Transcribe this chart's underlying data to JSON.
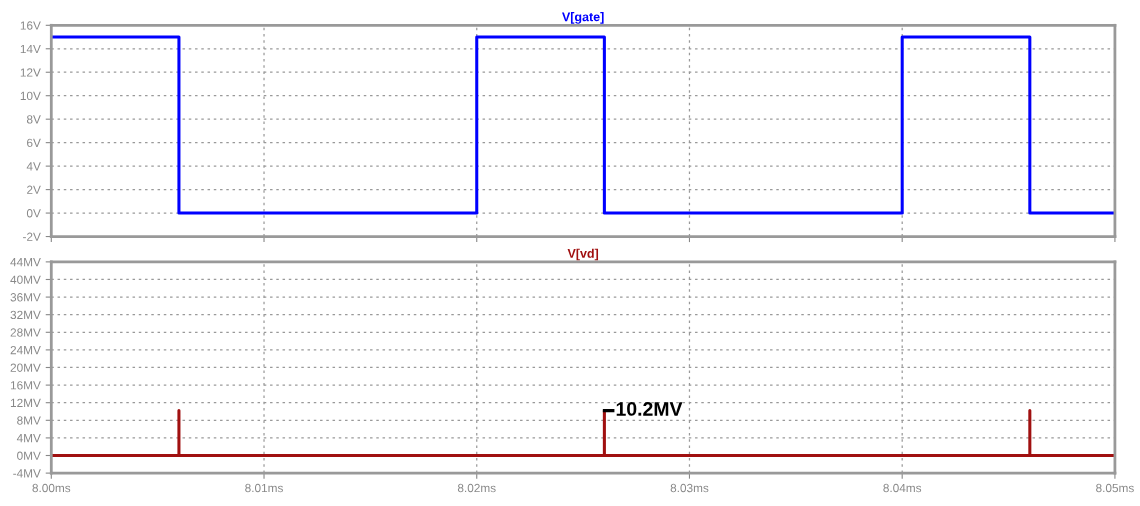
{
  "chart_data": [
    {
      "type": "line",
      "title": "V[gate]",
      "tick_labels": "y",
      "grid": true,
      "line_style": "solid",
      "xlim": [
        8.0,
        8.05
      ],
      "xticks": [
        {
          "value": 8.0,
          "label": null
        },
        {
          "value": 8.01,
          "label": null
        },
        {
          "value": 8.02,
          "label": null
        },
        {
          "value": 8.03,
          "label": null
        },
        {
          "value": 8.04,
          "label": null
        },
        {
          "value": 8.05,
          "label": null
        }
      ],
      "ylim": [
        -2,
        16
      ],
      "yticks": [
        {
          "value": -2,
          "label": "-2V"
        },
        {
          "value": 0,
          "label": "0V"
        },
        {
          "value": 2,
          "label": "2V"
        },
        {
          "value": 4,
          "label": "4V"
        },
        {
          "value": 6,
          "label": "6V"
        },
        {
          "value": 8,
          "label": "8V"
        },
        {
          "value": 10,
          "label": "10V"
        },
        {
          "value": 12,
          "label": "12V"
        },
        {
          "value": 14,
          "label": "14V"
        },
        {
          "value": 16,
          "label": "16V"
        }
      ],
      "series": [
        {
          "color": "#0000ff",
          "x": [
            8.0,
            8.006,
            8.006,
            8.02,
            8.02,
            8.026,
            8.026,
            8.04,
            8.04,
            8.046,
            8.046,
            8.05
          ],
          "values": [
            15,
            15,
            0,
            0,
            15,
            15,
            0,
            0,
            15,
            15,
            0,
            0
          ]
        }
      ]
    },
    {
      "type": "line",
      "title": "V[vd]",
      "grid": true,
      "line_style": "solid",
      "xlim": [
        8.0,
        8.05
      ],
      "xticks": [
        {
          "value": 8.0,
          "label": "8.00ms"
        },
        {
          "value": 8.01,
          "label": "8.01ms"
        },
        {
          "value": 8.02,
          "label": "8.02ms"
        },
        {
          "value": 8.03,
          "label": "8.03ms"
        },
        {
          "value": 8.04,
          "label": "8.04ms"
        },
        {
          "value": 8.05,
          "label": "8.05ms"
        }
      ],
      "ylim": [
        -4,
        44
      ],
      "yticks": [
        {
          "value": -4,
          "label": "-4MV"
        },
        {
          "value": 0,
          "label": "0MV"
        },
        {
          "value": 4,
          "label": "4MV"
        },
        {
          "value": 8,
          "label": "8MV"
        },
        {
          "value": 12,
          "label": "12MV"
        },
        {
          "value": 16,
          "label": "16MV"
        },
        {
          "value": 20,
          "label": "20MV"
        },
        {
          "value": 24,
          "label": "24MV"
        },
        {
          "value": 28,
          "label": "28MV"
        },
        {
          "value": 32,
          "label": "32MV"
        },
        {
          "value": 36,
          "label": "36MV"
        },
        {
          "value": 40,
          "label": "40MV"
        },
        {
          "value": 44,
          "label": "44MV"
        }
      ],
      "series": [
        {
          "color": "#a01010",
          "x": [
            8.0,
            8.006,
            8.006,
            8.006,
            8.026,
            8.026,
            8.026,
            8.046,
            8.046,
            8.046,
            8.05
          ],
          "values": [
            0,
            0,
            10.2,
            0,
            0,
            10.2,
            0,
            0,
            10.2,
            0,
            0
          ]
        }
      ],
      "annotations": [
        {
          "text": "10.2MV",
          "x": 8.026,
          "y": 10.2
        }
      ]
    }
  ]
}
